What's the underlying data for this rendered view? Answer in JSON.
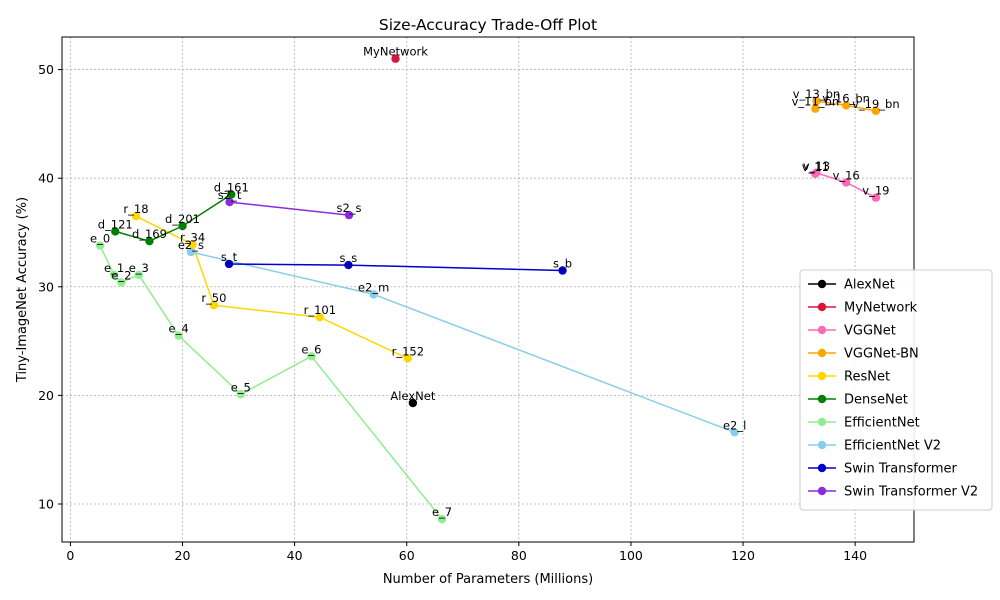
{
  "chart_data": {
    "type": "line",
    "title": "Size-Accuracy Trade-Off Plot",
    "xlabel": "Number of Parameters (Millions)",
    "ylabel": "Tiny-ImageNet Accuracy (%)",
    "xlim": [
      -1.5,
      150.5
    ],
    "ylim": [
      6.5,
      53.0
    ],
    "xticks": [
      0,
      20,
      40,
      60,
      80,
      100,
      120,
      140
    ],
    "yticks": [
      10,
      20,
      30,
      40,
      50
    ],
    "grid": true,
    "legend_position": "center-right",
    "series": [
      {
        "name": "AlexNet",
        "color": "#000000",
        "points": [
          {
            "label": "AlexNet",
            "x": 61.1,
            "y": 19.3
          }
        ]
      },
      {
        "name": "MyNetwork",
        "color": "#dc143c",
        "points": [
          {
            "label": "MyNetwork",
            "x": 58.0,
            "y": 51.0
          }
        ]
      },
      {
        "name": "VGGNet",
        "color": "#ff69b4",
        "points": [
          {
            "label": "v_11",
            "x": 132.9,
            "y": 40.4
          },
          {
            "label": "v_13",
            "x": 133.1,
            "y": 40.5
          },
          {
            "label": "v_16",
            "x": 138.4,
            "y": 39.6
          },
          {
            "label": "v_19",
            "x": 143.7,
            "y": 38.2
          }
        ]
      },
      {
        "name": "VGGNet-BN",
        "color": "#ffa500",
        "points": [
          {
            "label": "v_11_bn",
            "x": 132.9,
            "y": 46.4
          },
          {
            "label": "v_13_bn",
            "x": 133.1,
            "y": 47.1
          },
          {
            "label": "v_16_bn",
            "x": 138.4,
            "y": 46.7
          },
          {
            "label": "v_19_bn",
            "x": 143.7,
            "y": 46.2
          }
        ]
      },
      {
        "name": "ResNet",
        "color": "#ffd700",
        "points": [
          {
            "label": "r_18",
            "x": 11.7,
            "y": 36.5
          },
          {
            "label": "r_34",
            "x": 21.8,
            "y": 33.9
          },
          {
            "label": "r_50",
            "x": 25.6,
            "y": 28.3
          },
          {
            "label": "r_101",
            "x": 44.5,
            "y": 27.2
          },
          {
            "label": "r_152",
            "x": 60.2,
            "y": 23.4
          }
        ]
      },
      {
        "name": "DenseNet",
        "color": "#008000",
        "points": [
          {
            "label": "d_121",
            "x": 8.0,
            "y": 35.1
          },
          {
            "label": "d_169",
            "x": 14.1,
            "y": 34.2
          },
          {
            "label": "d_201",
            "x": 20.0,
            "y": 35.6
          },
          {
            "label": "d_161",
            "x": 28.7,
            "y": 38.5
          }
        ]
      },
      {
        "name": "EfficientNet",
        "color": "#90ee90",
        "points": [
          {
            "label": "e_0",
            "x": 5.3,
            "y": 33.8
          },
          {
            "label": "e_1",
            "x": 7.8,
            "y": 31.1
          },
          {
            "label": "e_2",
            "x": 9.1,
            "y": 30.4
          },
          {
            "label": "e_3",
            "x": 12.2,
            "y": 31.1
          },
          {
            "label": "e_4",
            "x": 19.3,
            "y": 25.5
          },
          {
            "label": "e_5",
            "x": 30.4,
            "y": 20.1
          },
          {
            "label": "e_6",
            "x": 43.0,
            "y": 23.6
          },
          {
            "label": "e_7",
            "x": 66.3,
            "y": 8.6
          }
        ]
      },
      {
        "name": "EfficientNet V2",
        "color": "#87ceeb",
        "points": [
          {
            "label": "e2_s",
            "x": 21.5,
            "y": 33.2
          },
          {
            "label": "e2_m",
            "x": 54.1,
            "y": 29.3
          },
          {
            "label": "e2_l",
            "x": 118.5,
            "y": 16.6
          }
        ]
      },
      {
        "name": "Swin Transformer",
        "color": "#0000cd",
        "points": [
          {
            "label": "s_t",
            "x": 28.3,
            "y": 32.1
          },
          {
            "label": "s_s",
            "x": 49.6,
            "y": 32.0
          },
          {
            "label": "s_b",
            "x": 87.8,
            "y": 31.5
          }
        ]
      },
      {
        "name": "Swin Transformer V2",
        "color": "#8a2be2",
        "points": [
          {
            "label": "s2_t",
            "x": 28.4,
            "y": 37.8
          },
          {
            "label": "s2_s",
            "x": 49.7,
            "y": 36.6
          }
        ]
      }
    ]
  }
}
